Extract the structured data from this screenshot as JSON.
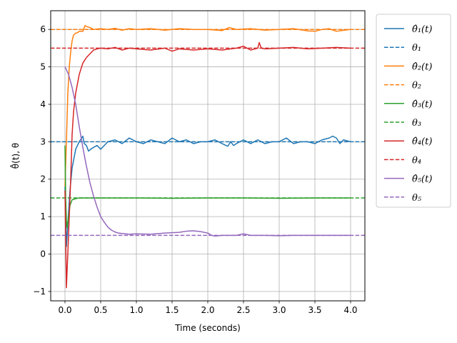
{
  "chart_data": {
    "type": "line",
    "title": "",
    "xlabel": "Time (seconds)",
    "ylabel": "θ̂(t),  θ",
    "xlim": [
      -0.2,
      4.2
    ],
    "ylim": [
      -1.25,
      6.5
    ],
    "xticks": [
      0.0,
      0.5,
      1.0,
      1.5,
      2.0,
      2.5,
      3.0,
      3.5,
      4.0
    ],
    "xtick_labels": [
      "0.0",
      "0.5",
      "1.0",
      "1.5",
      "2.0",
      "2.5",
      "3.0",
      "3.5",
      "4.0"
    ],
    "yticks": [
      -1,
      0,
      1,
      2,
      3,
      4,
      5,
      6
    ],
    "ytick_labels": [
      "−1",
      "0",
      "1",
      "2",
      "3",
      "4",
      "5",
      "6"
    ],
    "grid": true,
    "legend_position": "outside-right",
    "series": [
      {
        "name": "θ̂₁(t)",
        "color": "#1f77b4",
        "style": "solid",
        "x": [
          0.0,
          0.02,
          0.04,
          0.07,
          0.1,
          0.15,
          0.2,
          0.25,
          0.27,
          0.3,
          0.33,
          0.36,
          0.4,
          0.45,
          0.5,
          0.55,
          0.6,
          0.7,
          0.8,
          0.9,
          1.0,
          1.1,
          1.2,
          1.3,
          1.4,
          1.5,
          1.6,
          1.7,
          1.8,
          1.9,
          2.0,
          2.1,
          2.2,
          2.28,
          2.32,
          2.36,
          2.4,
          2.5,
          2.6,
          2.7,
          2.8,
          2.9,
          3.0,
          3.1,
          3.2,
          3.3,
          3.4,
          3.5,
          3.6,
          3.7,
          3.75,
          3.8,
          3.85,
          3.9,
          4.0
        ],
        "y": [
          1.8,
          0.2,
          0.8,
          1.7,
          2.3,
          2.8,
          3.0,
          3.15,
          2.95,
          2.9,
          2.75,
          2.8,
          2.85,
          2.9,
          2.8,
          2.9,
          3.0,
          3.05,
          2.95,
          3.1,
          3.0,
          2.95,
          3.05,
          3.0,
          2.95,
          3.1,
          3.0,
          3.05,
          2.95,
          3.0,
          3.0,
          3.05,
          2.95,
          2.88,
          3.0,
          2.9,
          2.95,
          3.05,
          2.95,
          3.05,
          2.95,
          3.0,
          3.0,
          3.1,
          2.95,
          3.0,
          3.0,
          2.95,
          3.05,
          3.1,
          3.15,
          3.1,
          2.95,
          3.05,
          3.0
        ]
      },
      {
        "name": "θ₁",
        "color": "#1f77b4",
        "style": "dashed",
        "x": [
          -0.2,
          4.2
        ],
        "y": [
          3.0,
          3.0
        ]
      },
      {
        "name": "θ̂₂(t)",
        "color": "#ff7f0e",
        "style": "solid",
        "x": [
          0.0,
          0.02,
          0.04,
          0.06,
          0.08,
          0.1,
          0.12,
          0.15,
          0.18,
          0.2,
          0.25,
          0.28,
          0.3,
          0.35,
          0.4,
          0.5,
          0.6,
          0.7,
          0.8,
          0.9,
          1.0,
          1.2,
          1.4,
          1.6,
          1.8,
          2.0,
          2.2,
          2.3,
          2.4,
          2.6,
          2.8,
          3.0,
          3.2,
          3.4,
          3.5,
          3.6,
          3.7,
          3.8,
          4.0
        ],
        "y": [
          1.8,
          3.0,
          4.3,
          5.0,
          5.4,
          5.7,
          5.85,
          5.9,
          5.92,
          5.95,
          5.95,
          6.1,
          6.08,
          6.05,
          6.0,
          6.02,
          6.0,
          6.03,
          5.98,
          6.02,
          6.0,
          6.02,
          5.98,
          6.02,
          6.0,
          6.0,
          5.97,
          6.05,
          6.0,
          6.02,
          5.98,
          6.0,
          6.02,
          5.96,
          5.95,
          6.0,
          6.02,
          5.95,
          6.0
        ]
      },
      {
        "name": "θ₂",
        "color": "#ff7f0e",
        "style": "dashed",
        "x": [
          -0.2,
          4.2
        ],
        "y": [
          6.0,
          6.0
        ]
      },
      {
        "name": "θ̂₃(t)",
        "color": "#2ca02c",
        "style": "solid",
        "x": [
          0.0,
          0.01,
          0.02,
          0.03,
          0.05,
          0.07,
          0.1,
          0.15,
          0.2,
          0.3,
          0.5,
          1.0,
          1.5,
          2.0,
          2.5,
          3.0,
          3.5,
          4.0
        ],
        "y": [
          2.9,
          1.5,
          0.9,
          0.7,
          1.0,
          1.3,
          1.45,
          1.48,
          1.5,
          1.5,
          1.5,
          1.5,
          1.49,
          1.5,
          1.5,
          1.49,
          1.5,
          1.5
        ]
      },
      {
        "name": "θ₃",
        "color": "#2ca02c",
        "style": "dashed",
        "x": [
          -0.2,
          4.2
        ],
        "y": [
          1.5,
          1.5
        ]
      },
      {
        "name": "θ̂₄(t)",
        "color": "#d62728",
        "style": "solid",
        "x": [
          0.0,
          0.02,
          0.05,
          0.08,
          0.1,
          0.12,
          0.15,
          0.2,
          0.25,
          0.3,
          0.35,
          0.4,
          0.45,
          0.5,
          0.6,
          0.7,
          0.8,
          0.9,
          1.0,
          1.2,
          1.4,
          1.5,
          1.6,
          1.8,
          2.0,
          2.2,
          2.4,
          2.5,
          2.6,
          2.7,
          2.72,
          2.75,
          2.8,
          3.0,
          3.2,
          3.4,
          3.6,
          3.8,
          4.0
        ],
        "y": [
          1.7,
          -0.9,
          0.5,
          2.0,
          3.2,
          3.8,
          4.3,
          4.8,
          5.1,
          5.25,
          5.35,
          5.45,
          5.48,
          5.5,
          5.48,
          5.52,
          5.45,
          5.5,
          5.48,
          5.45,
          5.5,
          5.42,
          5.48,
          5.45,
          5.48,
          5.45,
          5.5,
          5.55,
          5.45,
          5.5,
          5.65,
          5.5,
          5.48,
          5.5,
          5.52,
          5.48,
          5.5,
          5.52,
          5.5
        ]
      },
      {
        "name": "θ₄",
        "color": "#d62728",
        "style": "dashed",
        "x": [
          -0.2,
          4.2
        ],
        "y": [
          5.5,
          5.5
        ]
      },
      {
        "name": "θ̂₅(t)",
        "color": "#9467bd",
        "style": "solid",
        "x": [
          0.0,
          0.05,
          0.1,
          0.15,
          0.2,
          0.25,
          0.3,
          0.35,
          0.4,
          0.45,
          0.5,
          0.55,
          0.6,
          0.65,
          0.7,
          0.75,
          0.8,
          0.9,
          1.0,
          1.2,
          1.4,
          1.6,
          1.7,
          1.8,
          1.9,
          2.0,
          2.05,
          2.1,
          2.2,
          2.4,
          2.5,
          2.6,
          2.8,
          3.0,
          3.2,
          3.5,
          4.0
        ],
        "y": [
          5.0,
          4.8,
          4.45,
          4.0,
          3.4,
          2.85,
          2.35,
          1.9,
          1.55,
          1.25,
          1.0,
          0.85,
          0.72,
          0.64,
          0.59,
          0.56,
          0.55,
          0.53,
          0.54,
          0.53,
          0.56,
          0.58,
          0.61,
          0.62,
          0.6,
          0.56,
          0.5,
          0.48,
          0.5,
          0.5,
          0.54,
          0.5,
          0.5,
          0.49,
          0.5,
          0.5,
          0.5
        ]
      },
      {
        "name": "θ₅",
        "color": "#9467bd",
        "style": "dashed",
        "x": [
          -0.2,
          4.2
        ],
        "y": [
          0.5,
          0.5
        ]
      }
    ]
  }
}
